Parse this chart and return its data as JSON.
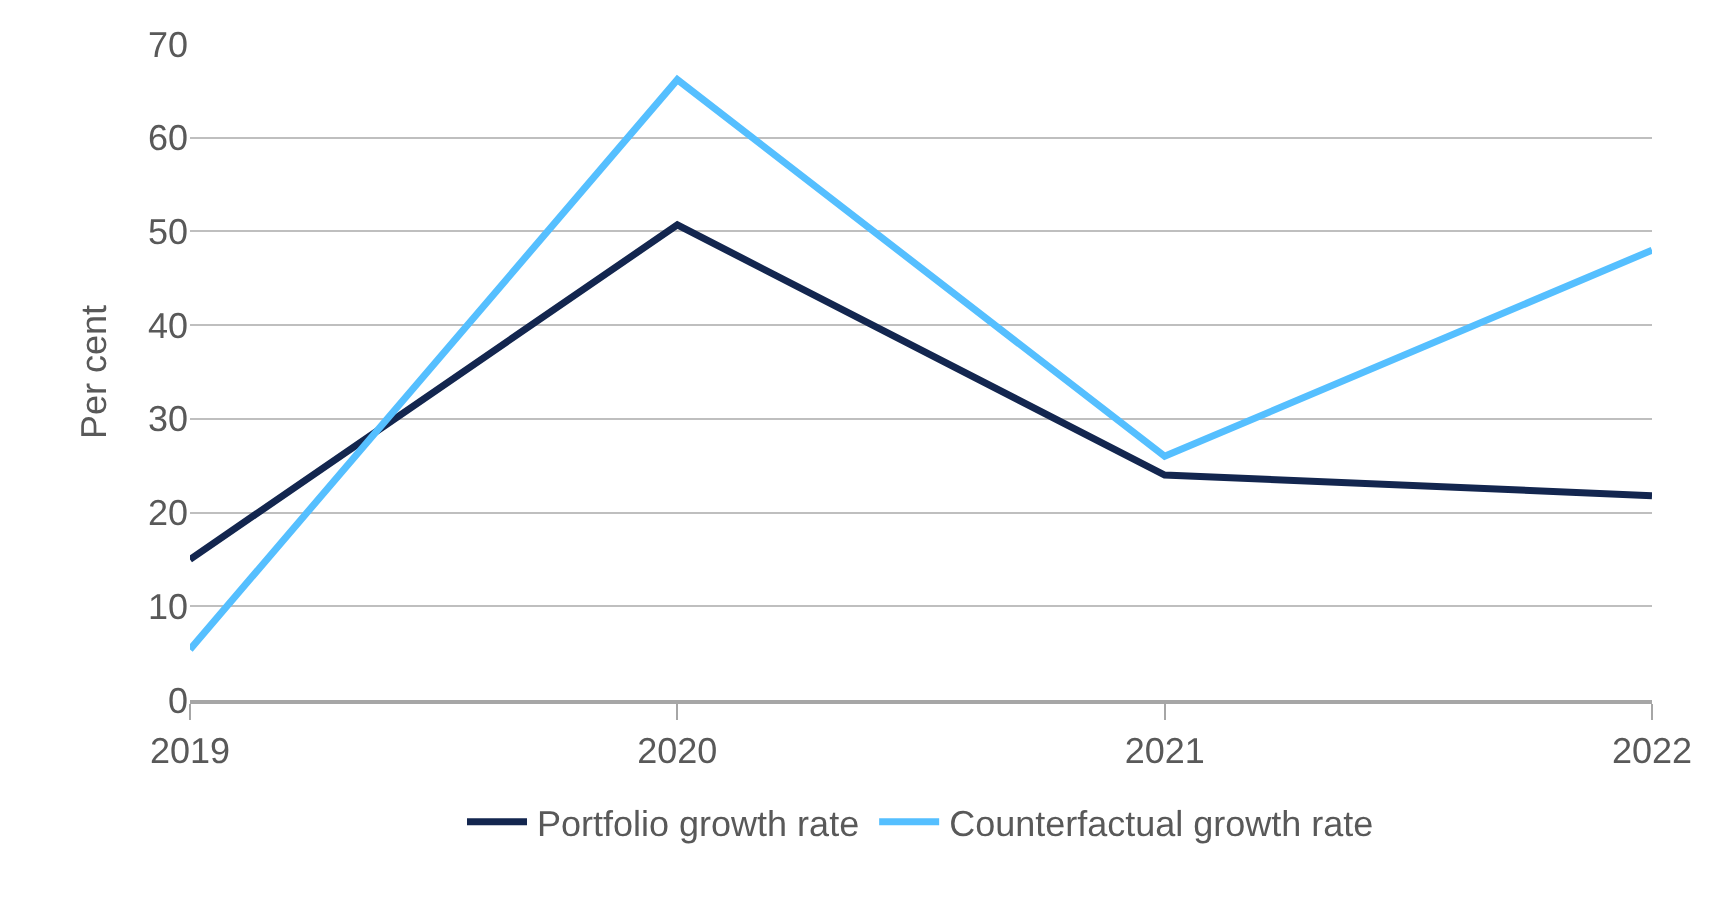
{
  "chart_data": {
    "type": "line",
    "ylabel": "Per cent",
    "categories": [
      "2019",
      "2020",
      "2021",
      "2022"
    ],
    "series": [
      {
        "name": "Portfolio growth rate",
        "color": "#13264f",
        "values": [
          15,
          50.7,
          24,
          21.8
        ]
      },
      {
        "name": "Counterfactual growth rate",
        "color": "#55bfff",
        "values": [
          5.4,
          66.2,
          26,
          48
        ]
      }
    ],
    "ylim": [
      0,
      70
    ],
    "yticks": [
      0,
      10,
      20,
      30,
      40,
      50,
      60,
      70
    ],
    "grid": "y",
    "legend": "bottom",
    "marker": "none",
    "line_style": "solid"
  }
}
